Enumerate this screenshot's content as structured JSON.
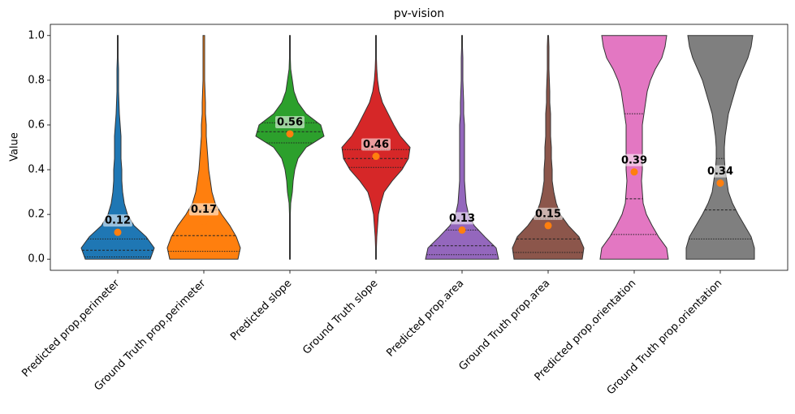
{
  "chart_data": {
    "type": "violin",
    "title": "pv-vision",
    "ylabel": "Value",
    "categories": [
      "Predicted prop.perimeter",
      "Ground Truth prop.perimeter",
      "Predicted slope",
      "Ground Truth slope",
      "Predicted prop.area",
      "Ground Truth prop.area",
      "Predicted prop.orientation",
      "Ground Truth prop.orientation"
    ],
    "colors": [
      "#1f77b4",
      "#ff7f0e",
      "#2ca02c",
      "#d62728",
      "#9467bd",
      "#8c564b",
      "#e377c2",
      "#7f7f7f"
    ],
    "mean_color": "#ff7f0e",
    "values": [
      0.12,
      0.17,
      0.56,
      0.46,
      0.13,
      0.15,
      0.39,
      0.34
    ],
    "quartiles": [
      [
        0.01,
        0.04,
        0.09
      ],
      [
        0.035,
        0.105,
        0.22
      ],
      [
        0.52,
        0.57,
        0.61
      ],
      [
        0.41,
        0.45,
        0.49
      ],
      [
        0.02,
        0.06,
        0.13
      ],
      [
        0.03,
        0.09,
        0.18
      ],
      [
        0.11,
        0.27,
        0.65
      ],
      [
        0.09,
        0.22,
        0.45
      ]
    ],
    "density_y": [
      0,
      0.05,
      0.1,
      0.15,
      0.2,
      0.25,
      0.3,
      0.35,
      0.4,
      0.45,
      0.5,
      0.55,
      0.6,
      0.65,
      0.7,
      0.75,
      0.8,
      0.85,
      0.9,
      0.95,
      1.0
    ],
    "density": [
      [
        40,
        45,
        35,
        20,
        12,
        8,
        6,
        5,
        5,
        4,
        4,
        4,
        3,
        2,
        1.5,
        1,
        1,
        1,
        0.5,
        0.5,
        0.5
      ],
      [
        42,
        45,
        40,
        32,
        22,
        14,
        10,
        8,
        6,
        5,
        4,
        3,
        3,
        2,
        2,
        1.5,
        1,
        1,
        1,
        1,
        1
      ],
      [
        0.5,
        0.5,
        0.5,
        0.5,
        0.5,
        1,
        3,
        4,
        6,
        10,
        20,
        42,
        38,
        20,
        10,
        5,
        3,
        1,
        0.5,
        0.5,
        0.5
      ],
      [
        0.5,
        0.5,
        1,
        2,
        3,
        6,
        10,
        20,
        32,
        40,
        42,
        30,
        22,
        15,
        8,
        4,
        2,
        1,
        0.5,
        0.5,
        0.5
      ],
      [
        45,
        42,
        28,
        15,
        8,
        5,
        4,
        3,
        3,
        3,
        3,
        3,
        3,
        2,
        2,
        1.5,
        1,
        1,
        1,
        0.5,
        0.5
      ],
      [
        42,
        44,
        38,
        25,
        15,
        10,
        7,
        5,
        5,
        4,
        4,
        3,
        3,
        3,
        2,
        2,
        1.5,
        1,
        1,
        1,
        0.5
      ],
      [
        42,
        40,
        30,
        22,
        15,
        11,
        10,
        9,
        10,
        10,
        10,
        10,
        10,
        12,
        14,
        16,
        20,
        26,
        34,
        38,
        40
      ],
      [
        42,
        42,
        38,
        30,
        22,
        15,
        10,
        8,
        6,
        5,
        5,
        6,
        8,
        10,
        14,
        18,
        22,
        28,
        34,
        38,
        40
      ]
    ],
    "ylim": [
      -0.05,
      1.05
    ],
    "yticks": [
      {
        "value": 0,
        "label": "0.0"
      },
      {
        "value": 0.2,
        "label": "0.2"
      },
      {
        "value": 0.4,
        "label": "0.4"
      },
      {
        "value": 0.6,
        "label": "0.6"
      },
      {
        "value": 0.8,
        "label": "0.8"
      },
      {
        "value": 1,
        "label": "1.0"
      }
    ]
  }
}
